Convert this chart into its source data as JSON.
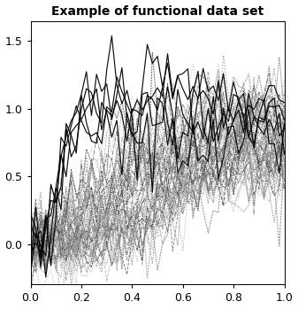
{
  "title": "Example of functional data set",
  "xlim": [
    0.0,
    1.0
  ],
  "ylim": [
    -0.3,
    1.65
  ],
  "xticks": [
    0.0,
    0.2,
    0.4,
    0.6,
    0.8,
    1.0
  ],
  "yticks": [
    0.0,
    0.5,
    1.0,
    1.5
  ],
  "n_points": 51,
  "n_solid": 5,
  "n_dashed": 60,
  "background_color": "#ffffff",
  "title_fontsize": 10
}
